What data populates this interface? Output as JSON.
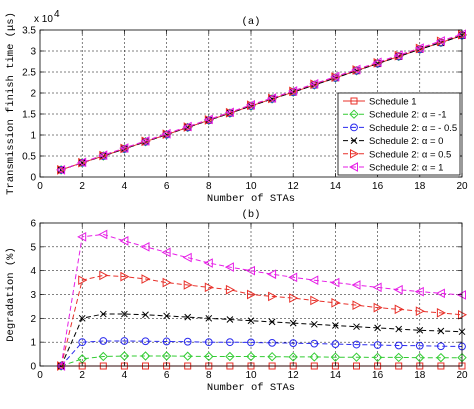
{
  "chart_data": [
    {
      "type": "line",
      "title": "(a)",
      "xlabel": "Number of STAs",
      "ylabel": "Transmission finish time (μs)",
      "y_exponent_label": "x 10^4",
      "xlim": [
        0,
        20
      ],
      "ylim": [
        0,
        3.5
      ],
      "xticks": [
        0,
        2,
        4,
        6,
        8,
        10,
        12,
        14,
        16,
        18,
        20
      ],
      "yticks": [
        0,
        0.5,
        1,
        1.5,
        2,
        2.5,
        3,
        3.5
      ],
      "grid": true,
      "legend_position": "lower-right",
      "x": [
        1,
        2,
        3,
        4,
        5,
        6,
        7,
        8,
        9,
        10,
        11,
        12,
        13,
        14,
        15,
        16,
        17,
        18,
        19,
        20
      ],
      "series": [
        {
          "name": "Schedule 1",
          "color": "#e8312a",
          "marker": "square",
          "dash": "solid",
          "values": [
            0.17,
            0.34,
            0.5,
            0.67,
            0.84,
            1.01,
            1.18,
            1.35,
            1.52,
            1.69,
            1.86,
            2.02,
            2.19,
            2.36,
            2.53,
            2.7,
            2.87,
            3.04,
            3.2,
            3.37
          ]
        },
        {
          "name": "Schedule 2: α = -1",
          "color": "#33cc33",
          "marker": "diamond",
          "dash": "dashed",
          "values": [
            0.17,
            0.34,
            0.5,
            0.67,
            0.84,
            1.01,
            1.18,
            1.35,
            1.52,
            1.69,
            1.86,
            2.02,
            2.19,
            2.36,
            2.53,
            2.7,
            2.87,
            3.04,
            3.2,
            3.37
          ]
        },
        {
          "name": "Schedule 2: α = - 0.5",
          "color": "#2a2aee",
          "marker": "circle",
          "dash": "dashed",
          "values": [
            0.17,
            0.34,
            0.5,
            0.67,
            0.84,
            1.01,
            1.18,
            1.35,
            1.52,
            1.69,
            1.86,
            2.02,
            2.19,
            2.36,
            2.53,
            2.7,
            2.87,
            3.04,
            3.2,
            3.37
          ]
        },
        {
          "name": "Schedule 2: α = 0",
          "color": "#000000",
          "marker": "x",
          "dash": "dashed",
          "values": [
            0.17,
            0.34,
            0.5,
            0.67,
            0.84,
            1.01,
            1.18,
            1.35,
            1.52,
            1.69,
            1.86,
            2.02,
            2.19,
            2.36,
            2.53,
            2.7,
            2.87,
            3.04,
            3.2,
            3.37
          ]
        },
        {
          "name": "Schedule 2: α = 0.5",
          "color": "#e8312a",
          "marker": "triangle-right",
          "dash": "dashed",
          "values": [
            0.17,
            0.34,
            0.51,
            0.68,
            0.85,
            1.02,
            1.19,
            1.36,
            1.53,
            1.71,
            1.87,
            2.04,
            2.21,
            2.38,
            2.55,
            2.72,
            2.89,
            3.06,
            3.23,
            3.39
          ]
        },
        {
          "name": "Schedule 2: α = 1",
          "color": "#e61ee6",
          "marker": "triangle-left",
          "dash": "dashed",
          "values": [
            0.17,
            0.35,
            0.52,
            0.69,
            0.86,
            1.03,
            1.2,
            1.37,
            1.54,
            1.72,
            1.88,
            2.05,
            2.22,
            2.39,
            2.56,
            2.73,
            2.9,
            3.07,
            3.24,
            3.4
          ]
        }
      ]
    },
    {
      "type": "line",
      "title": "(b)",
      "xlabel": "Number of STAs",
      "ylabel": "Degradation (%)",
      "xlim": [
        0,
        20
      ],
      "ylim": [
        0,
        6
      ],
      "xticks": [
        0,
        2,
        4,
        6,
        8,
        10,
        12,
        14,
        16,
        18,
        20
      ],
      "yticks": [
        0,
        1,
        2,
        3,
        4,
        5,
        6
      ],
      "grid": true,
      "x": [
        1,
        2,
        3,
        4,
        5,
        6,
        7,
        8,
        9,
        10,
        11,
        12,
        13,
        14,
        15,
        16,
        17,
        18,
        19,
        20
      ],
      "series": [
        {
          "name": "Schedule 1",
          "color": "#e8312a",
          "marker": "square",
          "dash": "solid",
          "values": [
            0,
            0,
            0,
            0,
            0,
            0,
            0,
            0,
            0,
            0,
            0,
            0,
            0,
            0,
            0,
            0,
            0,
            0,
            0,
            0
          ]
        },
        {
          "name": "Schedule 2: α = -1",
          "color": "#33cc33",
          "marker": "diamond",
          "dash": "dashed",
          "values": [
            0,
            0.3,
            0.4,
            0.42,
            0.42,
            0.42,
            0.41,
            0.4,
            0.4,
            0.4,
            0.39,
            0.38,
            0.38,
            0.37,
            0.37,
            0.36,
            0.36,
            0.35,
            0.35,
            0.35
          ]
        },
        {
          "name": "Schedule 2: α = - 0.5",
          "color": "#2a2aee",
          "marker": "circle",
          "dash": "dashed",
          "values": [
            0,
            1.0,
            1.05,
            1.05,
            1.04,
            1.03,
            1.02,
            1.0,
            1.0,
            0.99,
            0.97,
            0.96,
            0.94,
            0.92,
            0.9,
            0.88,
            0.86,
            0.85,
            0.83,
            0.82
          ]
        },
        {
          "name": "Schedule 2: α = 0",
          "color": "#000000",
          "marker": "x",
          "dash": "dashed",
          "values": [
            0,
            2.0,
            2.18,
            2.18,
            2.15,
            2.1,
            2.05,
            2.0,
            1.95,
            1.9,
            1.85,
            1.8,
            1.75,
            1.7,
            1.65,
            1.6,
            1.55,
            1.5,
            1.47,
            1.44
          ]
        },
        {
          "name": "Schedule 2: α = 0.5",
          "color": "#e8312a",
          "marker": "triangle-right",
          "dash": "dashed",
          "values": [
            0,
            3.6,
            3.8,
            3.75,
            3.65,
            3.5,
            3.4,
            3.3,
            3.2,
            3.0,
            2.92,
            2.85,
            2.75,
            2.65,
            2.55,
            2.45,
            2.38,
            2.3,
            2.23,
            2.15
          ]
        },
        {
          "name": "Schedule 2: α = 1",
          "color": "#e61ee6",
          "marker": "triangle-left",
          "dash": "dashed",
          "values": [
            0,
            5.42,
            5.52,
            5.25,
            5.0,
            4.77,
            4.55,
            4.32,
            4.15,
            4.0,
            3.85,
            3.72,
            3.6,
            3.5,
            3.4,
            3.3,
            3.2,
            3.12,
            3.05,
            2.98
          ]
        }
      ]
    }
  ]
}
